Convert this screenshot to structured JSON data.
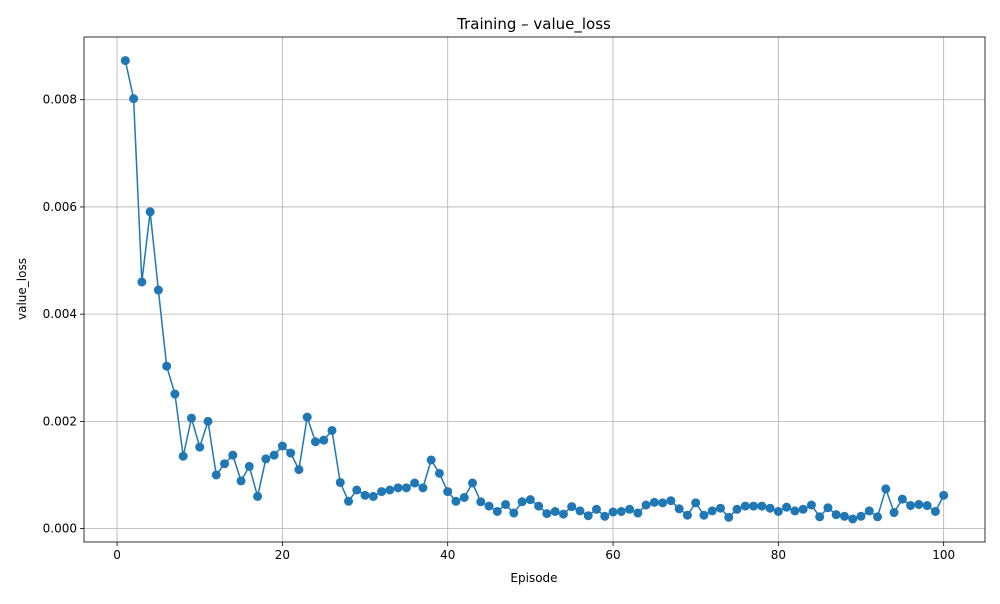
{
  "colors": {
    "line": "#1f77b4",
    "grid": "#b0b0b0",
    "axes": "#000000",
    "background": "#ffffff"
  },
  "chart_data": {
    "type": "line",
    "title": "Training – value_loss",
    "xlabel": "Episode",
    "ylabel": "value_loss",
    "grid": true,
    "markers": true,
    "xlim": [
      -4,
      105
    ],
    "ylim": [
      -0.00025,
      0.00917
    ],
    "xticks": [
      0,
      20,
      40,
      60,
      80,
      100
    ],
    "xtick_labels": [
      "0",
      "20",
      "40",
      "60",
      "80",
      "100"
    ],
    "yticks": [
      0,
      0.002,
      0.004,
      0.006,
      0.008
    ],
    "ytick_labels": [
      "0.000",
      "0.002",
      "0.004",
      "0.006",
      "0.008"
    ],
    "series": [
      {
        "x": [
          1,
          2,
          3,
          4,
          5,
          6,
          7,
          8,
          9,
          10,
          11,
          12,
          13,
          14,
          15,
          16,
          17,
          18,
          19,
          20,
          21,
          22,
          23,
          24,
          25,
          26,
          27,
          28,
          29,
          30,
          31,
          32,
          33,
          34,
          35,
          36,
          37,
          38,
          39,
          40,
          41,
          42,
          43,
          44,
          45,
          46,
          47,
          48,
          49,
          50,
          51,
          52,
          53,
          54,
          55,
          56,
          57,
          58,
          59,
          60,
          61,
          62,
          63,
          64,
          65,
          66,
          67,
          68,
          69,
          70,
          71,
          72,
          73,
          74,
          75,
          76,
          77,
          78,
          79,
          80,
          81,
          82,
          83,
          84,
          85,
          86,
          87,
          88,
          89,
          90,
          91,
          92,
          93,
          94,
          95,
          96,
          97,
          98,
          99,
          100
        ],
        "values": [
          0.00873,
          0.00802,
          0.0046,
          0.00591,
          0.00445,
          0.00303,
          0.00251,
          0.00135,
          0.00206,
          0.00152,
          0.002,
          0.001,
          0.00121,
          0.00137,
          0.00089,
          0.00116,
          0.0006,
          0.0013,
          0.00137,
          0.00154,
          0.00141,
          0.0011,
          0.00208,
          0.00162,
          0.00165,
          0.00183,
          0.00086,
          0.00051,
          0.00072,
          0.00062,
          0.0006,
          0.00069,
          0.00072,
          0.00076,
          0.00076,
          0.00085,
          0.00076,
          0.00128,
          0.00103,
          0.00069,
          0.00051,
          0.00058,
          0.00085,
          0.0005,
          0.00042,
          0.00032,
          0.00045,
          0.00029,
          0.0005,
          0.00054,
          0.00042,
          0.00028,
          0.00032,
          0.00027,
          0.00041,
          0.00033,
          0.00024,
          0.00036,
          0.00023,
          0.00031,
          0.00032,
          0.00036,
          0.00029,
          0.00044,
          0.00049,
          0.00048,
          0.00052,
          0.00037,
          0.00025,
          0.00048,
          0.00025,
          0.00033,
          0.00038,
          0.00021,
          0.00036,
          0.00042,
          0.00042,
          0.00042,
          0.00038,
          0.00032,
          0.0004,
          0.00033,
          0.00036,
          0.00044,
          0.00022,
          0.00039,
          0.00026,
          0.00023,
          0.00018,
          0.00023,
          0.00033,
          0.00022,
          0.00074,
          0.0003,
          0.00055,
          0.00043,
          0.00045,
          0.00043,
          0.00032,
          0.00062
        ]
      }
    ]
  }
}
